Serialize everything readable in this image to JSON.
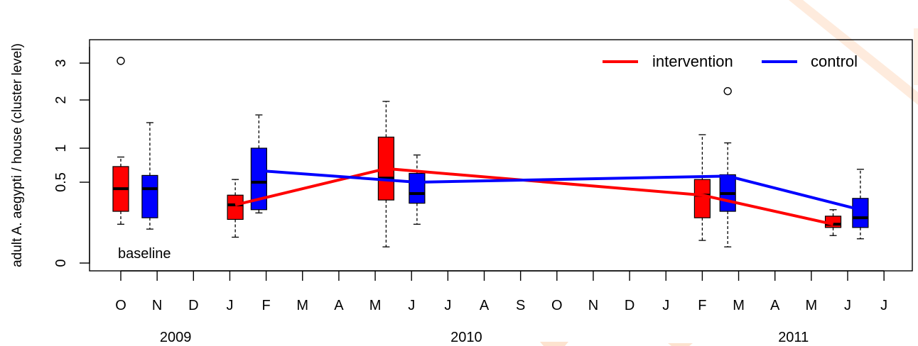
{
  "chart_data": {
    "type": "box",
    "ylabel": "adult A. aegypti / house (cluster level)",
    "annotation": "baseline",
    "y_ticks": [
      "0",
      "0.5",
      "1",
      "2",
      "3"
    ],
    "y_tick_values": [
      0,
      0.5,
      1,
      2,
      3
    ],
    "month_labels": [
      "O",
      "N",
      "D",
      "J",
      "F",
      "M",
      "A",
      "M",
      "J",
      "J",
      "A",
      "S",
      "O",
      "N",
      "D",
      "J",
      "F",
      "M",
      "A",
      "M",
      "J",
      "J"
    ],
    "year_labels": [
      {
        "label": "2009",
        "month": 1
      },
      {
        "label": "2010",
        "month": 9
      },
      {
        "label": "2011",
        "month": 18
      }
    ],
    "legend": [
      {
        "name": "intervention",
        "color": "#ff0000"
      },
      {
        "name": "control",
        "color": "#0000ff"
      }
    ],
    "series": [
      {
        "name": "intervention",
        "color": "#ff0000",
        "line": [
          {
            "month": 3.15,
            "value": 0.36
          },
          {
            "month": 7.3,
            "value": 0.7
          },
          {
            "month": 16.0,
            "value": 0.42
          },
          {
            "month": 19.6,
            "value": 0.24
          }
        ],
        "boxes": [
          {
            "month": 0.0,
            "q1": 0.32,
            "median": 0.46,
            "q3": 0.73,
            "min": 0.24,
            "max": 0.87,
            "outliers": [
              3.06
            ]
          },
          {
            "month": 3.15,
            "q1": 0.27,
            "median": 0.36,
            "q3": 0.42,
            "min": 0.16,
            "max": 0.54,
            "outliers": []
          },
          {
            "month": 7.3,
            "q1": 0.39,
            "median": 0.56,
            "q3": 1.23,
            "min": 0.1,
            "max": 1.97,
            "outliers": []
          },
          {
            "month": 16.0,
            "q1": 0.28,
            "median": 0.42,
            "q3": 0.54,
            "min": 0.14,
            "max": 1.28,
            "outliers": []
          },
          {
            "month": 19.6,
            "q1": 0.22,
            "median": 0.24,
            "q3": 0.29,
            "min": 0.17,
            "max": 0.33,
            "outliers": []
          }
        ]
      },
      {
        "name": "control",
        "color": "#0000ff",
        "line": [
          {
            "month": 3.8,
            "value": 0.67
          },
          {
            "month": 8.15,
            "value": 0.5
          },
          {
            "month": 16.7,
            "value": 0.59
          },
          {
            "month": 20.35,
            "value": 0.33
          }
        ],
        "boxes": [
          {
            "month": 0.8,
            "q1": 0.28,
            "median": 0.46,
            "q3": 0.6,
            "min": 0.21,
            "max": 1.53,
            "outliers": []
          },
          {
            "month": 3.8,
            "q1": 0.33,
            "median": 0.5,
            "q3": 1.0,
            "min": 0.31,
            "max": 1.69,
            "outliers": []
          },
          {
            "month": 8.15,
            "q1": 0.37,
            "median": 0.43,
            "q3": 0.63,
            "min": 0.24,
            "max": 0.9,
            "outliers": []
          },
          {
            "month": 16.7,
            "q1": 0.32,
            "median": 0.43,
            "q3": 0.61,
            "min": 0.1,
            "max": 1.11,
            "outliers": [
              2.24
            ]
          },
          {
            "month": 20.35,
            "q1": 0.22,
            "median": 0.28,
            "q3": 0.4,
            "min": 0.15,
            "max": 0.69,
            "outliers": []
          }
        ]
      }
    ]
  }
}
